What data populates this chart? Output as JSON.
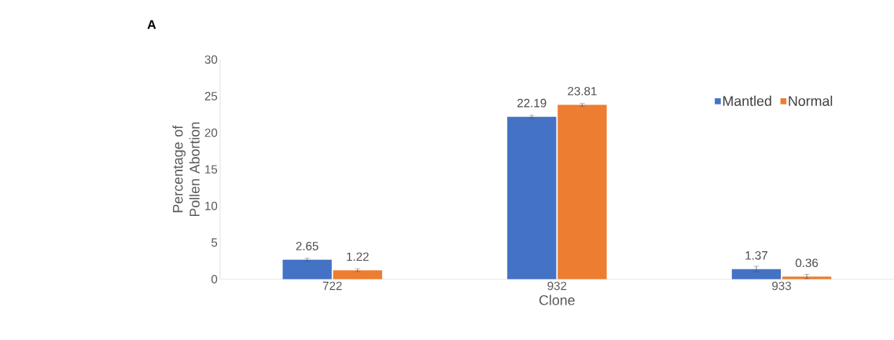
{
  "chart_data": {
    "type": "bar",
    "title": "A",
    "xlabel": "Clone",
    "ylabel": "Percentage of Pollen Abortion",
    "categories": [
      "722",
      "932",
      "933"
    ],
    "series": [
      {
        "name": "Mantled",
        "color": "#4472c4",
        "values": [
          2.65,
          22.19,
          1.37
        ],
        "errors": [
          0.2,
          0.2,
          0.4
        ]
      },
      {
        "name": "Normal",
        "color": "#ed7d31",
        "values": [
          1.22,
          23.81,
          0.36
        ],
        "errors": [
          0.2,
          0.2,
          0.3
        ]
      }
    ],
    "ylim": [
      0,
      30
    ],
    "yticks": [
      0,
      5,
      10,
      15,
      20,
      25,
      30
    ],
    "data_labels": true,
    "legend": "top right"
  }
}
